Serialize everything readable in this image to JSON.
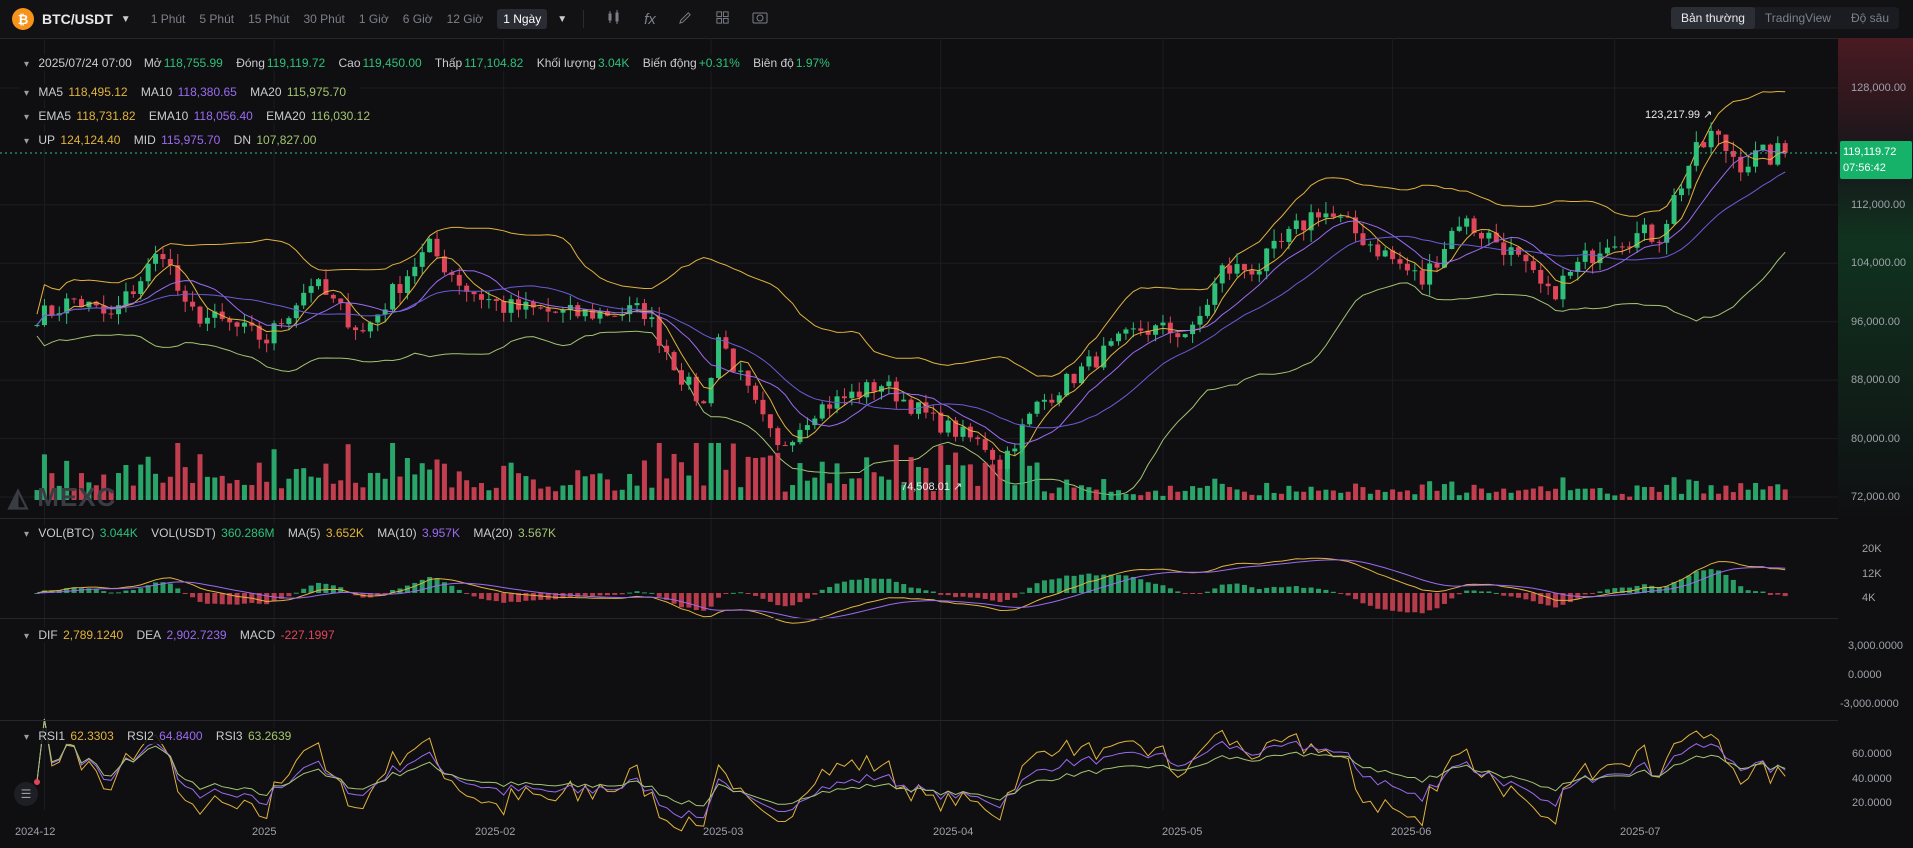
{
  "toolbar": {
    "coin_glyph": "₿",
    "symbol": "BTC/USDT",
    "timeframes": [
      "1 Phút",
      "5 Phút",
      "15 Phút",
      "30 Phút",
      "1 Giờ",
      "6 Giờ",
      "12 Giờ",
      "1 Ngày"
    ],
    "active_timeframe": "1 Ngày",
    "tools": [
      "candle-type-icon",
      "indicator-icon",
      "draw-icon",
      "layout-icon",
      "camera-icon"
    ],
    "views": [
      "Bản thường",
      "TradingView",
      "Độ sâu"
    ],
    "active_view": "Bản thường"
  },
  "legend": {
    "ohlc": {
      "date": "2025/07/24 07:00",
      "open_label": "Mở",
      "open": "118,755.99",
      "close_label": "Đóng",
      "close": "119,119.72",
      "high_label": "Cao",
      "high": "119,450.00",
      "low_label": "Thấp",
      "low": "117,104.82",
      "vol_label": "Khối lượng",
      "vol": "3.04K",
      "chg_label": "Biến động",
      "chg": "+0.31%",
      "amp_label": "Biên độ",
      "amp": "1.97%"
    },
    "ma": {
      "ma5_label": "MA5",
      "ma5": "118,495.12",
      "ma10_label": "MA10",
      "ma10": "118,380.65",
      "ma20_label": "MA20",
      "ma20": "115,975.70"
    },
    "ema": {
      "ema5_label": "EMA5",
      "ema5": "118,731.82",
      "ema10_label": "EMA10",
      "ema10": "118,056.40",
      "ema20_label": "EMA20",
      "ema20": "116,030.12"
    },
    "boll": {
      "up_label": "UP",
      "up": "124,124.40",
      "mid_label": "MID",
      "mid": "115,975.70",
      "dn_label": "DN",
      "dn": "107,827.00"
    },
    "vol": {
      "btc_label": "VOL(BTC)",
      "btc": "3.044K",
      "usdt_label": "VOL(USDT)",
      "usdt": "360.286M",
      "ma5_label": "MA(5)",
      "ma5": "3.652K",
      "ma10_label": "MA(10)",
      "ma10": "3.957K",
      "ma20_label": "MA(20)",
      "ma20": "3.567K"
    },
    "macd": {
      "dif_label": "DIF",
      "dif": "2,789.1240",
      "dea_label": "DEA",
      "dea": "2,902.7239",
      "macd_label": "MACD",
      "macd": "-227.1997"
    },
    "rsi": {
      "rsi1_label": "RSI1",
      "rsi1": "62.3303",
      "rsi2_label": "RSI2",
      "rsi2": "64.8400",
      "rsi3_label": "RSI3",
      "rsi3": "63.2639"
    }
  },
  "price_axis": [
    "128,000.00",
    "112,000.00",
    "104,000.00",
    "96,000.00",
    "88,000.00",
    "80,000.00",
    "72,000.00"
  ],
  "vol_axis": [
    "20K",
    "12K",
    "4K"
  ],
  "macd_axis": [
    "3,000.0000",
    "0.0000",
    "-3,000.0000"
  ],
  "rsi_axis": [
    "60.0000",
    "40.0000",
    "20.0000"
  ],
  "x_axis": [
    "2024-12",
    "2025",
    "2025-02",
    "2025-03",
    "2025-04",
    "2025-05",
    "2025-06",
    "2025-07"
  ],
  "current_price": "119,119.72",
  "countdown": "07:56:42",
  "high_mark": "123,217.99",
  "low_mark": "74,508.01",
  "watermark": "MEXC",
  "colors": {
    "up": "#2fc07a",
    "down": "#e0465a",
    "ma5": "#e2b33c",
    "ma10": "#9b6bf0",
    "ma20": "#a3c472",
    "boll": "#e2b33c"
  },
  "chart_data": {
    "type": "candlestick",
    "title": "",
    "x_labels": [
      "2024-12",
      "2025",
      "2025-02",
      "2025-03",
      "2025-04",
      "2025-05",
      "2025-06",
      "2025-07"
    ],
    "ylim": [
      70000,
      132000
    ],
    "close_path": [
      {
        "date": "2024-12-01",
        "close": 97000
      },
      {
        "date": "2024-12-05",
        "close": 99000
      },
      {
        "date": "2024-12-10",
        "close": 96500
      },
      {
        "date": "2024-12-17",
        "close": 106000
      },
      {
        "date": "2024-12-20",
        "close": 97500
      },
      {
        "date": "2024-12-26",
        "close": 95500
      },
      {
        "date": "2024-12-31",
        "close": 93500
      },
      {
        "date": "2025-01-06",
        "close": 101500
      },
      {
        "date": "2025-01-13",
        "close": 94500
      },
      {
        "date": "2025-01-20",
        "close": 104000
      },
      {
        "date": "2025-01-22",
        "close": 106000
      },
      {
        "date": "2025-01-27",
        "close": 100500
      },
      {
        "date": "2025-02-01",
        "close": 98000
      },
      {
        "date": "2025-02-10",
        "close": 97000
      },
      {
        "date": "2025-02-20",
        "close": 97500
      },
      {
        "date": "2025-02-25",
        "close": 88500
      },
      {
        "date": "2025-02-28",
        "close": 84500
      },
      {
        "date": "2025-03-02",
        "close": 94000
      },
      {
        "date": "2025-03-10",
        "close": 78500
      },
      {
        "date": "2025-03-15",
        "close": 84000
      },
      {
        "date": "2025-03-24",
        "close": 87500
      },
      {
        "date": "2025-03-31",
        "close": 82500
      },
      {
        "date": "2025-04-07",
        "close": 79000
      },
      {
        "date": "2025-04-09",
        "close": 76500
      },
      {
        "date": "2025-04-14",
        "close": 84500
      },
      {
        "date": "2025-04-22",
        "close": 91000
      },
      {
        "date": "2025-04-28",
        "close": 95000
      },
      {
        "date": "2025-05-05",
        "close": 94500
      },
      {
        "date": "2025-05-09",
        "close": 103000
      },
      {
        "date": "2025-05-14",
        "close": 103500
      },
      {
        "date": "2025-05-22",
        "close": 111500
      },
      {
        "date": "2025-05-28",
        "close": 107500
      },
      {
        "date": "2025-06-05",
        "close": 101500
      },
      {
        "date": "2025-06-10",
        "close": 110000
      },
      {
        "date": "2025-06-16",
        "close": 106500
      },
      {
        "date": "2025-06-22",
        "close": 99500
      },
      {
        "date": "2025-06-30",
        "close": 107500
      },
      {
        "date": "2025-07-07",
        "close": 108000
      },
      {
        "date": "2025-07-11",
        "close": 117500
      },
      {
        "date": "2025-07-14",
        "close": 121500
      },
      {
        "date": "2025-07-18",
        "close": 118000
      },
      {
        "date": "2025-07-24",
        "close": 119119.72
      }
    ],
    "markers": {
      "high": 123217.99,
      "low": 74508.01
    }
  }
}
